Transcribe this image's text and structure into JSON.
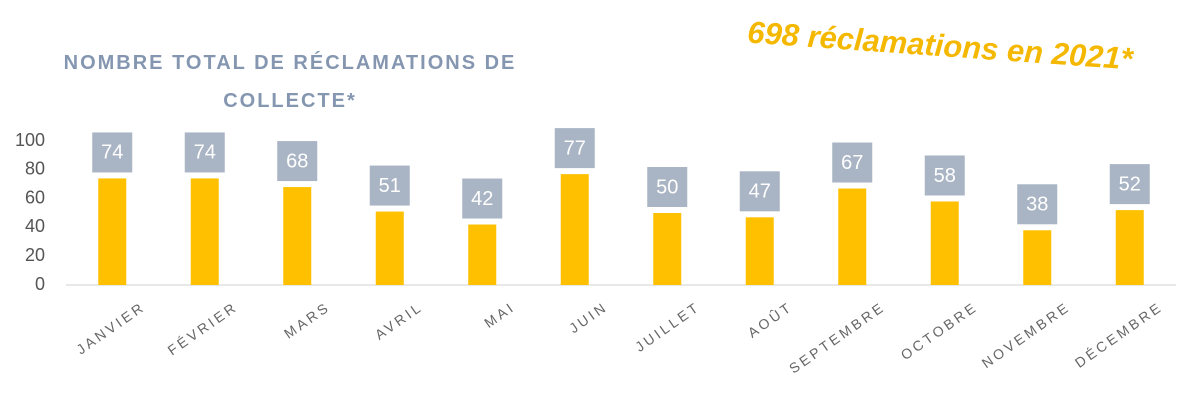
{
  "chart_data": {
    "type": "bar",
    "title": "NOMBRE TOTAL DE RÉCLAMATIONS DE COLLECTE*",
    "annotation": "698 réclamations en 2021*",
    "categories": [
      "JANVIER",
      "FÉVRIER",
      "MARS",
      "AVRIL",
      "MAI",
      "JUIN",
      "JUILLET",
      "AOÛT",
      "SEPTEMBRE",
      "OCTOBRE",
      "NOVEMBRE",
      "DÉCEMBRE"
    ],
    "values": [
      74,
      74,
      68,
      51,
      42,
      77,
      50,
      47,
      67,
      58,
      38,
      52
    ],
    "color": "#ffc000",
    "label_box_color": "#a9b4c4",
    "ylim": [
      0,
      100
    ],
    "yticks": [
      0,
      20,
      40,
      60,
      80,
      100
    ],
    "grid": false
  }
}
